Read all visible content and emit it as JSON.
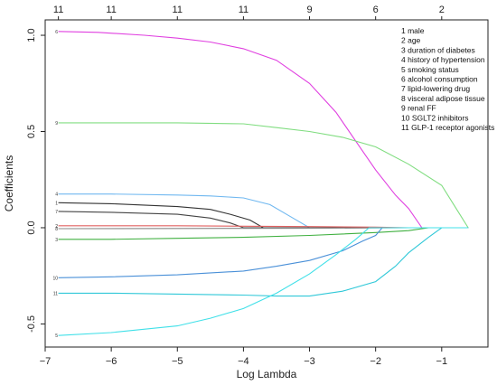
{
  "chart_data": {
    "type": "line",
    "title": "",
    "xlabel": "Log Lambda",
    "ylabel": "Coefficients",
    "xlim": [
      -7,
      -0.3
    ],
    "ylim": [
      -0.62,
      1.08
    ],
    "xticks": [
      -7,
      -6,
      -5,
      -4,
      -3,
      -2,
      -1
    ],
    "xtick_labels": [
      "−7",
      "−6",
      "−5",
      "−4",
      "−3",
      "−2",
      "−1"
    ],
    "yticks": [
      -0.5,
      0.0,
      0.5,
      1.0
    ],
    "ytick_labels": [
      "-0.5",
      "0.0",
      "0.5",
      "1.0"
    ],
    "top_axis": {
      "x": [
        -6.8,
        -6.0,
        -5.0,
        -4.0,
        -3.0,
        -2.0,
        -1.0
      ],
      "labels": [
        "11",
        "11",
        "11",
        "11",
        "9",
        "6",
        "2"
      ]
    },
    "grid": false,
    "legend_position": "top-right",
    "legend": [
      "1 male",
      "2 age",
      "3 duration of diabetes",
      "4 history of hypertension",
      "5 smoking status",
      "6 alcohol consumption",
      "7 lipid-lowering drug",
      "8 visceral adipose tissue",
      "9 renal FF",
      "10 SGLT2 inhibitors",
      "11 GLP-1 receptor agonists"
    ],
    "series": [
      {
        "label": "6",
        "color": "#e040e0",
        "points": [
          [
            -6.8,
            1.02
          ],
          [
            -6.2,
            1.015
          ],
          [
            -5.5,
            1.0
          ],
          [
            -5.0,
            0.985
          ],
          [
            -4.5,
            0.965
          ],
          [
            -4.0,
            0.93
          ],
          [
            -3.5,
            0.87
          ],
          [
            -3.0,
            0.75
          ],
          [
            -2.6,
            0.6
          ],
          [
            -2.3,
            0.45
          ],
          [
            -2.0,
            0.3
          ],
          [
            -1.7,
            0.17
          ],
          [
            -1.5,
            0.1
          ],
          [
            -1.3,
            0.0
          ],
          [
            -0.6,
            0.0
          ]
        ]
      },
      {
        "label": "9",
        "color": "#80dd80",
        "points": [
          [
            -6.8,
            0.545
          ],
          [
            -6.0,
            0.545
          ],
          [
            -5.0,
            0.545
          ],
          [
            -4.0,
            0.54
          ],
          [
            -3.5,
            0.52
          ],
          [
            -3.0,
            0.5
          ],
          [
            -2.5,
            0.47
          ],
          [
            -2.0,
            0.42
          ],
          [
            -1.5,
            0.33
          ],
          [
            -1.0,
            0.22
          ],
          [
            -0.6,
            0.0
          ]
        ]
      },
      {
        "label": "4",
        "color": "#70b8f0",
        "points": [
          [
            -6.8,
            0.175
          ],
          [
            -6.0,
            0.175
          ],
          [
            -5.0,
            0.17
          ],
          [
            -4.5,
            0.165
          ],
          [
            -4.0,
            0.155
          ],
          [
            -3.6,
            0.12
          ],
          [
            -3.3,
            0.06
          ],
          [
            -3.0,
            0.0
          ],
          [
            -0.6,
            0.0
          ]
        ]
      },
      {
        "label": "1",
        "color": "#333333",
        "points": [
          [
            -6.8,
            0.13
          ],
          [
            -6.0,
            0.125
          ],
          [
            -5.0,
            0.11
          ],
          [
            -4.5,
            0.095
          ],
          [
            -4.2,
            0.07
          ],
          [
            -3.9,
            0.04
          ],
          [
            -3.7,
            0.0
          ],
          [
            -0.6,
            0.0
          ]
        ]
      },
      {
        "label": "7",
        "color": "#444444",
        "points": [
          [
            -6.8,
            0.085
          ],
          [
            -6.0,
            0.08
          ],
          [
            -5.0,
            0.07
          ],
          [
            -4.5,
            0.05
          ],
          [
            -4.2,
            0.025
          ],
          [
            -4.0,
            0.0
          ],
          [
            -0.6,
            0.0
          ]
        ]
      },
      {
        "label": "2",
        "color": "#e06060",
        "points": [
          [
            -6.8,
            0.01
          ],
          [
            -5.0,
            0.01
          ],
          [
            -4.0,
            0.008
          ],
          [
            -3.0,
            0.006
          ],
          [
            -2.0,
            0.003
          ],
          [
            -1.5,
            0.0
          ],
          [
            -0.6,
            0.0
          ]
        ]
      },
      {
        "label": "8",
        "color": "#888888",
        "points": [
          [
            -6.8,
            -0.005
          ],
          [
            -5.0,
            -0.004
          ],
          [
            -3.0,
            -0.003
          ],
          [
            -2.0,
            -0.001
          ],
          [
            -1.5,
            0.0
          ],
          [
            -0.6,
            0.0
          ]
        ]
      },
      {
        "label": "3",
        "color": "#40b040",
        "points": [
          [
            -6.8,
            -0.06
          ],
          [
            -6.0,
            -0.06
          ],
          [
            -5.0,
            -0.055
          ],
          [
            -4.0,
            -0.05
          ],
          [
            -3.0,
            -0.04
          ],
          [
            -2.0,
            -0.025
          ],
          [
            -1.5,
            -0.015
          ],
          [
            -1.2,
            0.0
          ],
          [
            -0.6,
            0.0
          ]
        ]
      },
      {
        "label": "10",
        "color": "#4a90d8",
        "points": [
          [
            -6.8,
            -0.26
          ],
          [
            -6.0,
            -0.255
          ],
          [
            -5.0,
            -0.245
          ],
          [
            -4.0,
            -0.225
          ],
          [
            -3.5,
            -0.2
          ],
          [
            -3.0,
            -0.17
          ],
          [
            -2.5,
            -0.12
          ],
          [
            -2.2,
            -0.07
          ],
          [
            -2.0,
            -0.04
          ],
          [
            -1.9,
            0.0
          ],
          [
            -0.6,
            0.0
          ]
        ]
      },
      {
        "label": "11",
        "color": "#30c8d8",
        "points": [
          [
            -6.8,
            -0.34
          ],
          [
            -6.0,
            -0.34
          ],
          [
            -5.0,
            -0.345
          ],
          [
            -4.0,
            -0.35
          ],
          [
            -3.5,
            -0.355
          ],
          [
            -3.0,
            -0.355
          ],
          [
            -2.5,
            -0.33
          ],
          [
            -2.0,
            -0.28
          ],
          [
            -1.7,
            -0.2
          ],
          [
            -1.5,
            -0.13
          ],
          [
            -1.2,
            -0.05
          ],
          [
            -1.0,
            0.0
          ],
          [
            -0.6,
            0.0
          ]
        ]
      },
      {
        "label": "5",
        "color": "#40e0e8",
        "points": [
          [
            -6.8,
            -0.56
          ],
          [
            -6.0,
            -0.545
          ],
          [
            -5.0,
            -0.51
          ],
          [
            -4.5,
            -0.47
          ],
          [
            -4.0,
            -0.42
          ],
          [
            -3.5,
            -0.34
          ],
          [
            -3.0,
            -0.24
          ],
          [
            -2.6,
            -0.14
          ],
          [
            -2.3,
            -0.06
          ],
          [
            -2.1,
            0.0
          ],
          [
            -0.6,
            0.0
          ]
        ]
      }
    ]
  }
}
